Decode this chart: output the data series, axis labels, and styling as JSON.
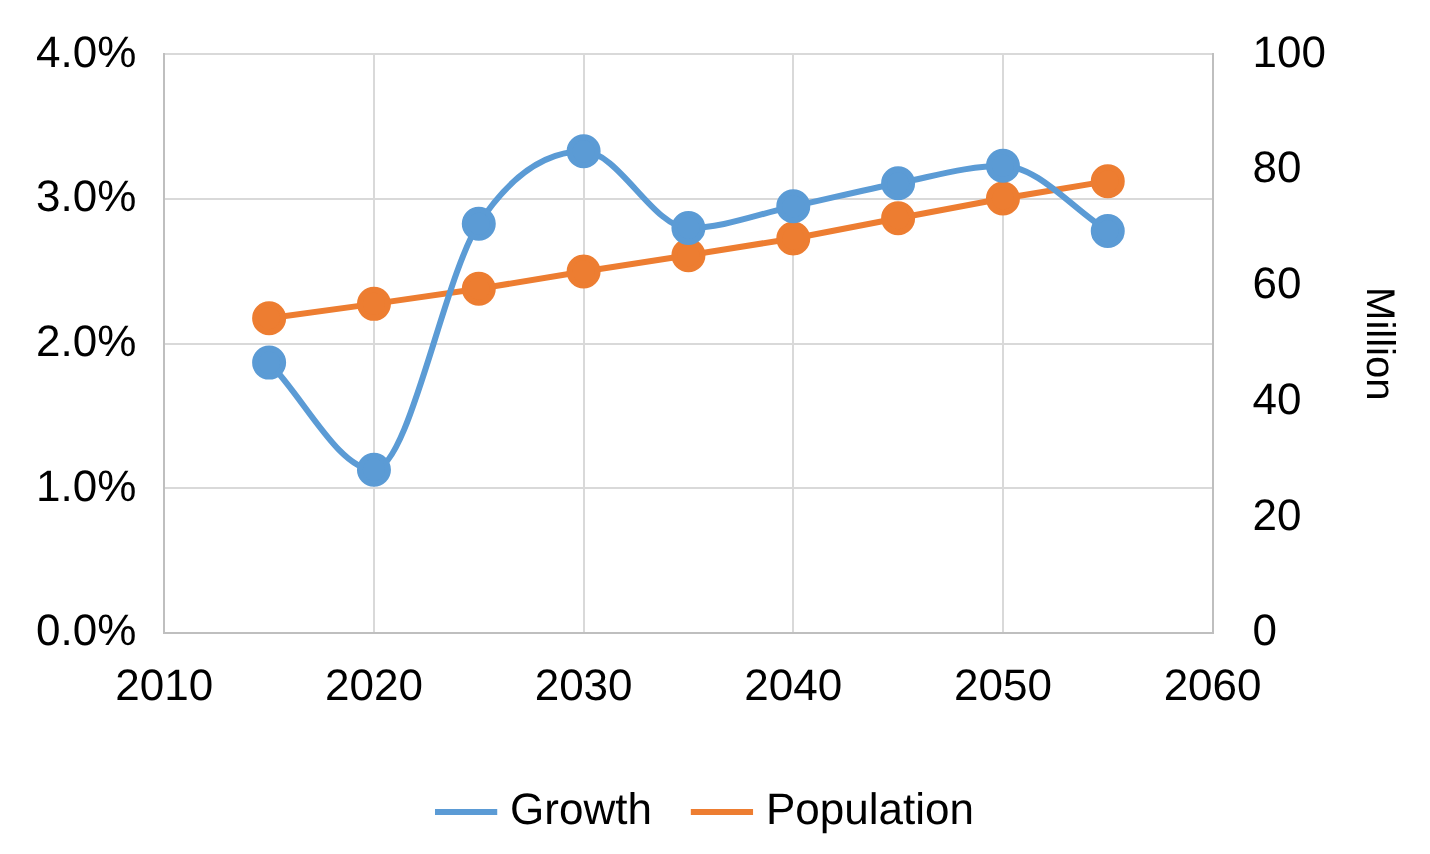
{
  "chart_data": {
    "type": "line",
    "x": [
      2015,
      2020,
      2025,
      2030,
      2035,
      2040,
      2045,
      2050,
      2055
    ],
    "series": [
      {
        "name": "Growth",
        "color": "#5b9bd5",
        "values": [
          1.87,
          1.13,
          2.83,
          3.33,
          2.8,
          2.95,
          3.11,
          3.23,
          2.78
        ]
      },
      {
        "name": "Population",
        "color": "#ed7d31",
        "axis": "y2",
        "values": [
          54.4,
          56.9,
          59.5,
          62.5,
          65.3,
          68.2,
          71.7,
          75.1,
          78.1
        ]
      }
    ],
    "xlim": [
      2010,
      2060
    ],
    "xticks": [
      2010,
      2020,
      2030,
      2040,
      2050,
      2060
    ],
    "ylim": [
      0,
      4
    ],
    "yticks": [
      {
        "value": 0,
        "label": "0.0%"
      },
      {
        "value": 1,
        "label": "1.0%"
      },
      {
        "value": 2,
        "label": "2.0%"
      },
      {
        "value": 3,
        "label": "3.0%"
      },
      {
        "value": 4,
        "label": "4.0%"
      }
    ],
    "y2lim": [
      0,
      100
    ],
    "y2ticks": [
      0,
      20,
      40,
      60,
      80,
      100
    ],
    "y2label": "Million",
    "grid": true,
    "legend": "bottom",
    "marker": "circle",
    "line_style": "solid"
  }
}
